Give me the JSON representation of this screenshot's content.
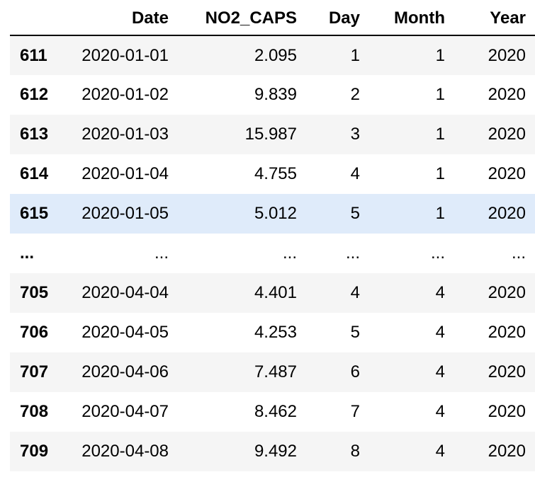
{
  "table": {
    "index_header": "",
    "columns": [
      "Date",
      "NO2_CAPS",
      "Day",
      "Month",
      "Year"
    ],
    "rows": [
      {
        "index": "611",
        "cells": [
          "2020-01-01",
          "2.095",
          "1",
          "1",
          "2020"
        ]
      },
      {
        "index": "612",
        "cells": [
          "2020-01-02",
          "9.839",
          "2",
          "1",
          "2020"
        ]
      },
      {
        "index": "613",
        "cells": [
          "2020-01-03",
          "15.987",
          "3",
          "1",
          "2020"
        ]
      },
      {
        "index": "614",
        "cells": [
          "2020-01-04",
          "4.755",
          "4",
          "1",
          "2020"
        ]
      },
      {
        "index": "615",
        "cells": [
          "2020-01-05",
          "5.012",
          "5",
          "1",
          "2020"
        ]
      },
      {
        "index": "...",
        "cells": [
          "...",
          "...",
          "...",
          "...",
          "..."
        ]
      },
      {
        "index": "705",
        "cells": [
          "2020-04-04",
          "4.401",
          "4",
          "4",
          "2020"
        ]
      },
      {
        "index": "706",
        "cells": [
          "2020-04-05",
          "4.253",
          "5",
          "4",
          "2020"
        ]
      },
      {
        "index": "707",
        "cells": [
          "2020-04-06",
          "7.487",
          "6",
          "4",
          "2020"
        ]
      },
      {
        "index": "708",
        "cells": [
          "2020-04-07",
          "8.462",
          "7",
          "4",
          "2020"
        ]
      },
      {
        "index": "709",
        "cells": [
          "2020-04-08",
          "9.492",
          "8",
          "4",
          "2020"
        ]
      }
    ]
  },
  "colors": {
    "stripe": "#f5f5f5",
    "hover_row": "#dfebfa",
    "header_rule": "#000000"
  }
}
